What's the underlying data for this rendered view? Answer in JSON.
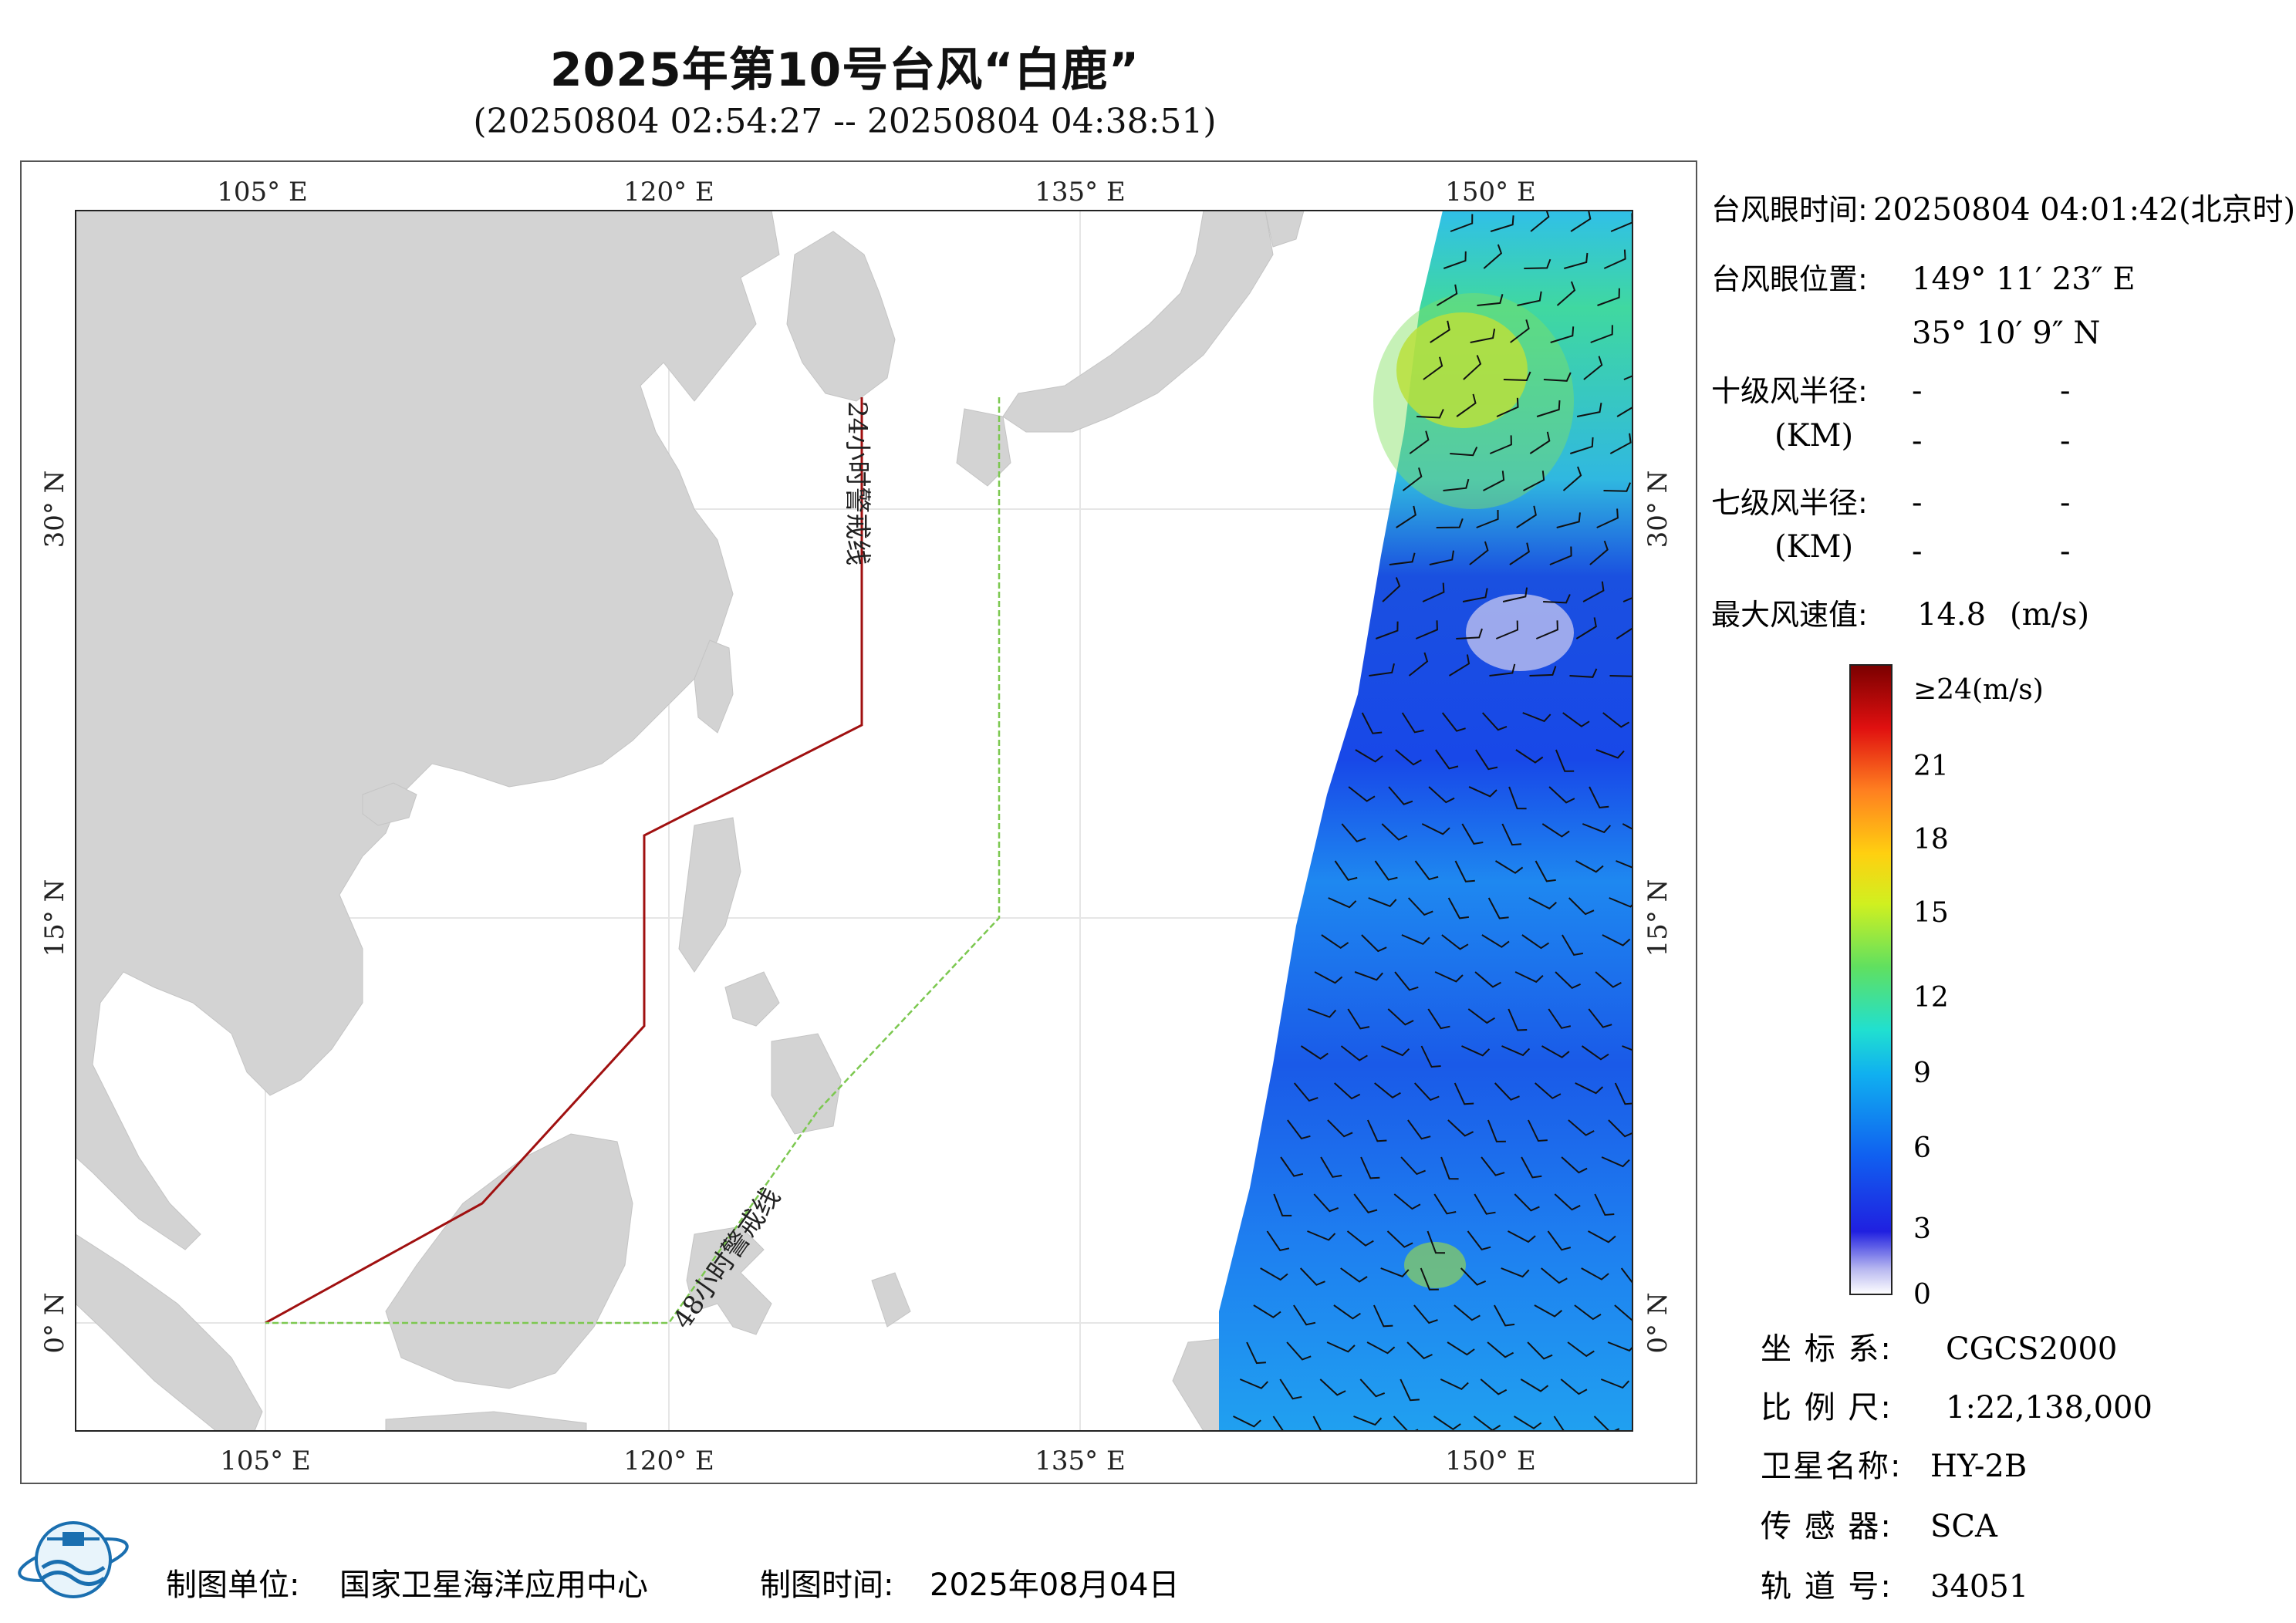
{
  "header": {
    "title": "2025年第10号台风“白鹿”",
    "subtitle": "(20250804 02:54:27 -- 20250804 04:38:51)"
  },
  "map": {
    "lon_ticks": [
      "105° E",
      "120° E",
      "135° E",
      "150° E"
    ],
    "lat_ticks": [
      "30° N",
      "15° N",
      "0° N"
    ],
    "warning_24h_label": "24小时警戒线",
    "warning_48h_label": "48小时警戒线",
    "colors": {
      "land": "#d3d3d3",
      "warning_24h": "#a01010",
      "warning_48h": "#7cc850",
      "grid": "#e6e6e6"
    }
  },
  "panel": {
    "eye_time_label": "台风眼时间:",
    "eye_time_value": "20250804 04:01:42(北京时)",
    "eye_pos_label": "台风眼位置:",
    "eye_lon": "149° 11′ 23″ E",
    "eye_lat": "35° 10′ 9″ N",
    "r10_label": "十级风半径:",
    "r7_label": "七级风半径:",
    "km_label": "(KM)",
    "dash": "-",
    "max_wind_label": "最大风速值:",
    "max_wind_value": "14.8",
    "max_wind_unit": "(m/s)"
  },
  "colorbar": {
    "labels": [
      "≥24(m/s)",
      "21",
      "18",
      "15",
      "12",
      "9",
      "6",
      "3",
      "0"
    ],
    "colors": [
      "#8b0000",
      "#e01010",
      "#ff8020",
      "#ffd010",
      "#90e030",
      "#20d0e0",
      "#2070f0",
      "#1020e0",
      "#f0f0ff"
    ]
  },
  "info": {
    "crs_label": "坐 标 系:",
    "crs_value": "CGCS2000",
    "scale_label": "比 例 尺:",
    "scale_value": "1:22,138,000",
    "sat_label": "卫星名称:",
    "sat_value": "HY-2B",
    "sensor_label": "传 感 器:",
    "sensor_value": "SCA",
    "orbit_label": "轨 道 号:",
    "orbit_value": "34051"
  },
  "footer": {
    "producer_label": "制图单位:",
    "producer_value": "国家卫星海洋应用中心",
    "time_label": "制图时间:",
    "time_value": "2025年08月04日"
  }
}
